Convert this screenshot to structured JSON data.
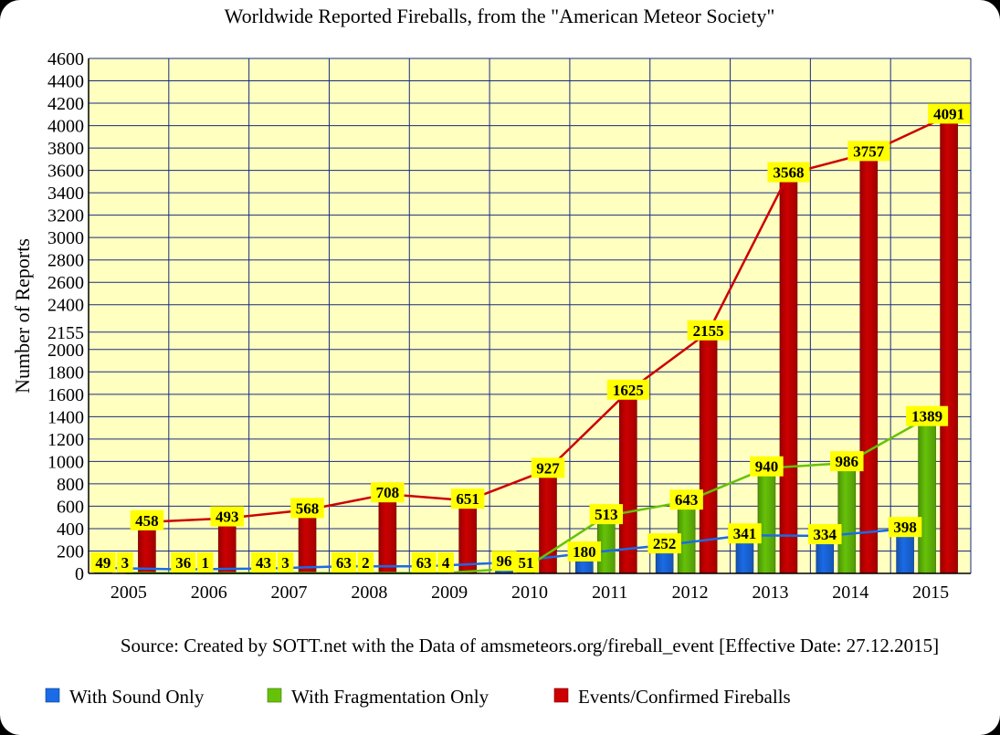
{
  "chart_data": {
    "type": "bar",
    "title": "Worldwide Reported Fireballs, from the \"American Meteor Society\"",
    "ylabel": "Number of Reports",
    "source": "Source: Created by SOTT.net with the Data of amsmeteors.org/fireball_event [Effective Date: 27.12.2015]",
    "categories": [
      "2005",
      "2006",
      "2007",
      "2008",
      "2009",
      "2010",
      "2011",
      "2012",
      "2013",
      "2014",
      "2015"
    ],
    "ylim": [
      0,
      4600
    ],
    "yticks": [
      "0",
      "200",
      "400",
      "600",
      "800",
      "1000",
      "1200",
      "1400",
      "1600",
      "1800",
      "2000",
      "2155",
      "2400",
      "2600",
      "2800",
      "3000",
      "3200",
      "3400",
      "3600",
      "3800",
      "4000",
      "4200",
      "4400",
      "4600"
    ],
    "ytick_values": [
      0,
      200,
      400,
      600,
      800,
      1000,
      1200,
      1400,
      1600,
      1800,
      2000,
      2155,
      2400,
      2600,
      2800,
      3000,
      3200,
      3400,
      3600,
      3800,
      4000,
      4200,
      4400,
      4600
    ],
    "grid": true,
    "legend_position": "bottom",
    "series": [
      {
        "name": "With Sound Only",
        "color": "#1a6be6",
        "values": [
          49,
          36,
          43,
          63,
          63,
          96,
          180,
          252,
          341,
          334,
          398
        ]
      },
      {
        "name": "With Fragmentation Only",
        "color": "#66c208",
        "values": [
          3,
          1,
          3,
          2,
          4,
          51,
          513,
          643,
          940,
          986,
          1389
        ]
      },
      {
        "name": "Events/Confirmed Fireballs",
        "color": "#cc0000",
        "values": [
          458,
          493,
          568,
          708,
          651,
          927,
          1625,
          2155,
          3568,
          3757,
          4091
        ]
      }
    ],
    "trend_lines": true,
    "colors": {
      "plot_background": "#ffffc0",
      "grid": "#1a2a80",
      "data_label_background": "#ffff00"
    }
  }
}
